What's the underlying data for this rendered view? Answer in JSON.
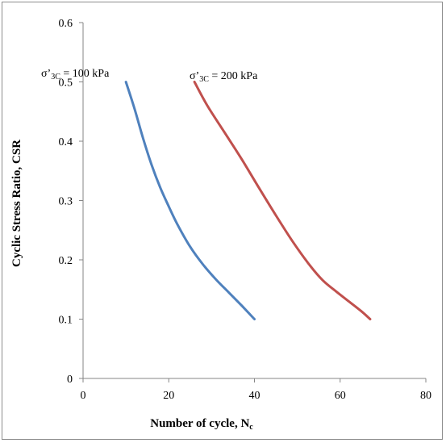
{
  "chart_data": {
    "type": "line",
    "title": "",
    "xlabel": "Number of cycle, N",
    "xlabel_sub": "c",
    "ylabel": "Cyclic Stress Ratio, CSR",
    "xlim": [
      0,
      80
    ],
    "ylim": [
      0,
      0.6
    ],
    "xticks": [
      0,
      20,
      40,
      60,
      80
    ],
    "yticks": [
      0,
      0.1,
      0.2,
      0.3,
      0.4,
      0.5,
      0.6
    ],
    "grid": false,
    "legend": "none",
    "series": [
      {
        "color": "#4f81bd",
        "label_parts": [
          "σ’",
          "3C",
          " = 100 kPa"
        ],
        "x": [
          10,
          12,
          14,
          16,
          18,
          20,
          22,
          25,
          28,
          31,
          34,
          37,
          40
        ],
        "y": [
          0.5,
          0.455,
          0.405,
          0.36,
          0.322,
          0.29,
          0.26,
          0.222,
          0.192,
          0.167,
          0.145,
          0.123,
          0.1
        ]
      },
      {
        "color": "#c0504d",
        "label_parts": [
          "σ’",
          "3C",
          " = 200 kPa"
        ],
        "x": [
          26,
          29,
          33,
          37,
          41,
          45,
          49,
          53,
          56,
          59,
          62,
          65,
          67
        ],
        "y": [
          0.5,
          0.46,
          0.415,
          0.37,
          0.322,
          0.275,
          0.23,
          0.19,
          0.165,
          0.147,
          0.13,
          0.113,
          0.1
        ]
      }
    ]
  }
}
